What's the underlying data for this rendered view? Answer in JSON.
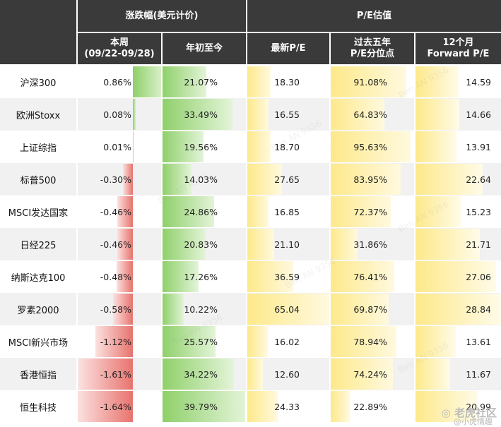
{
  "header": {
    "group_change": "涨跌幅(美元计价)",
    "group_pe": "P/E估值",
    "col_week_line1": "本周",
    "col_week_line2": "(09/22-09/28)",
    "col_ytd": "年初至今",
    "col_pe": "最新P/E",
    "col_pct_line1": "过去五年",
    "col_pct_line2": "P/E分位点",
    "col_fwd_line1": "12个月",
    "col_fwd_line2": "Forward P/E"
  },
  "rows": [
    {
      "name": "沪深300",
      "week": "0.86%",
      "week_v": 0.86,
      "ytd": "21.07%",
      "ytd_v": 21.07,
      "pe": "18.30",
      "pe_v": 18.3,
      "pct": "91.08%",
      "pct_v": 91.08,
      "fwd": "14.59",
      "fwd_v": 14.59
    },
    {
      "name": "欧洲Stoxx",
      "week": "0.08%",
      "week_v": 0.08,
      "ytd": "33.49%",
      "ytd_v": 33.49,
      "pe": "16.55",
      "pe_v": 16.55,
      "pct": "64.83%",
      "pct_v": 64.83,
      "fwd": "14.66",
      "fwd_v": 14.66
    },
    {
      "name": "上证综指",
      "week": "0.01%",
      "week_v": 0.01,
      "ytd": "19.56%",
      "ytd_v": 19.56,
      "pe": "18.70",
      "pe_v": 18.7,
      "pct": "95.63%",
      "pct_v": 95.63,
      "fwd": "13.91",
      "fwd_v": 13.91
    },
    {
      "name": "标普500",
      "week": "-0.30%",
      "week_v": -0.3,
      "ytd": "14.03%",
      "ytd_v": 14.03,
      "pe": "27.65",
      "pe_v": 27.65,
      "pct": "83.95%",
      "pct_v": 83.95,
      "fwd": "22.64",
      "fwd_v": 22.64
    },
    {
      "name": "MSCI发达国家",
      "week": "-0.46%",
      "week_v": -0.46,
      "ytd": "24.86%",
      "ytd_v": 24.86,
      "pe": "16.85",
      "pe_v": 16.85,
      "pct": "72.37%",
      "pct_v": 72.37,
      "fwd": "15.23",
      "fwd_v": 15.23
    },
    {
      "name": "日经225",
      "week": "-0.46%",
      "week_v": -0.46,
      "ytd": "20.83%",
      "ytd_v": 20.83,
      "pe": "21.10",
      "pe_v": 21.1,
      "pct": "31.86%",
      "pct_v": 31.86,
      "fwd": "21.71",
      "fwd_v": 21.71
    },
    {
      "name": "纳斯达克100",
      "week": "-0.48%",
      "week_v": -0.48,
      "ytd": "17.26%",
      "ytd_v": 17.26,
      "pe": "36.59",
      "pe_v": 36.59,
      "pct": "76.41%",
      "pct_v": 76.41,
      "fwd": "27.06",
      "fwd_v": 27.06
    },
    {
      "name": "罗素2000",
      "week": "-0.58%",
      "week_v": -0.58,
      "ytd": "10.22%",
      "ytd_v": 10.22,
      "pe": "65.04",
      "pe_v": 65.04,
      "pct": "69.87%",
      "pct_v": 69.87,
      "fwd": "28.84",
      "fwd_v": 28.84
    },
    {
      "name": "MSCI新兴市场",
      "week": "-1.12%",
      "week_v": -1.12,
      "ytd": "25.57%",
      "ytd_v": 25.57,
      "pe": "16.02",
      "pe_v": 16.02,
      "pct": "78.94%",
      "pct_v": 78.94,
      "fwd": "13.61",
      "fwd_v": 13.61
    },
    {
      "name": "香港恒指",
      "week": "-1.61%",
      "week_v": -1.61,
      "ytd": "34.22%",
      "ytd_v": 34.22,
      "pe": "12.60",
      "pe_v": 12.6,
      "pct": "74.24%",
      "pct_v": 74.24,
      "fwd": "11.67",
      "fwd_v": 11.67
    },
    {
      "name": "恒生科技",
      "week": "-1.64%",
      "week_v": -1.64,
      "ytd": "39.79%",
      "ytd_v": 39.79,
      "pe": "24.33",
      "pe_v": 24.33,
      "pct": "22.89%",
      "pct_v": 22.89,
      "fwd": "20.99",
      "fwd_v": 20.99
    }
  ],
  "colors": {
    "header_bg": "#3a3a3a",
    "positive_bar": "#8fd06a",
    "negative_bar": "#e8736e",
    "pe_bar": "#fde98a",
    "row_alt": "#f1f1f1"
  },
  "watermark": {
    "logo_text": "老虎社区",
    "logo_sub": "@小虎情趣"
  }
}
